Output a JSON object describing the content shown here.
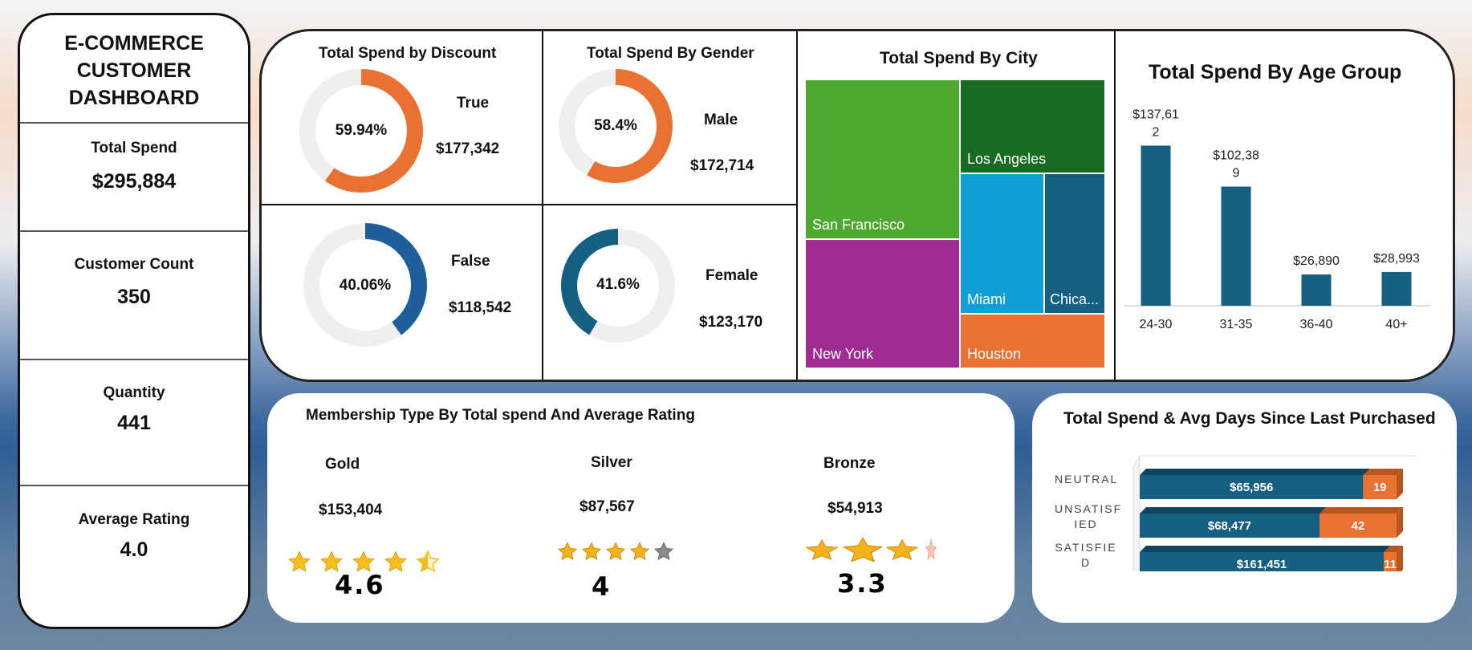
{
  "kpis": {
    "title_lines": [
      "E-COMMERCE",
      "CUSTOMER",
      "DASHBOARD"
    ],
    "items": [
      {
        "label": "Total Spend",
        "value": "$295,884"
      },
      {
        "label": "Customer Count",
        "value": "350"
      },
      {
        "label": "Quantity",
        "value": "441"
      },
      {
        "label": "Average Rating",
        "value": "4.0"
      }
    ]
  },
  "discount": {
    "title": "Total Spend by Discount",
    "true": {
      "label": "True",
      "pct": "59.94%",
      "value": "$177,342",
      "fraction": 0.5994
    },
    "false": {
      "label": "False",
      "pct": "40.06%",
      "value": "$118,542",
      "fraction": 0.4006
    }
  },
  "gender": {
    "title": "Total Spend By Gender",
    "male": {
      "label": "Male",
      "pct": "58.4%",
      "value": "$172,714",
      "fraction": 0.584
    },
    "female": {
      "label": "Female",
      "pct": "41.6%",
      "value": "$123,170",
      "fraction": 0.416
    }
  },
  "city": {
    "title": "Total Spend By City",
    "cells": [
      {
        "label": "San Francisco",
        "color": "#4ea72e"
      },
      {
        "label": "New York",
        "color": "#a02b93"
      },
      {
        "label": "Los Angeles",
        "color": "#196b24"
      },
      {
        "label": "Miami",
        "color": "#0f9ed5"
      },
      {
        "label": "Chica...",
        "color": "#156082"
      },
      {
        "label": "Houston",
        "color": "#e97132"
      }
    ]
  },
  "colors": {
    "orange": "#e97132",
    "blue": "#1f5f99",
    "teal": "#156082",
    "track": "#efefef"
  },
  "chart_data": [
    {
      "type": "bar",
      "title": "Total Spend By Age Group",
      "categories": [
        "24-30",
        "31-35",
        "36-40",
        "40+"
      ],
      "values": [
        137612,
        102389,
        26890,
        28993
      ],
      "data_labels": [
        [
          "$137,61",
          "2"
        ],
        [
          "$102,38",
          "9"
        ],
        [
          "$26,890"
        ],
        [
          "$28,993"
        ]
      ],
      "ylim": [
        0,
        140000
      ]
    },
    {
      "type": "bar",
      "title": "Total Spend & Avg Days Since Last Purchased",
      "orientation": "horizontal-stacked",
      "categories": [
        [
          "NEUTRAL"
        ],
        [
          "UNSATISF",
          "IED"
        ],
        [
          "SATISFIE",
          "D"
        ]
      ],
      "series": [
        {
          "values": [
            65956,
            68477,
            161451
          ],
          "labels": [
            "$65,956",
            "$68,477",
            "$161,451"
          ]
        },
        {
          "values": [
            19,
            42,
            11
          ],
          "labels": [
            "19",
            "42",
            "11"
          ]
        }
      ],
      "bar_fraction_second": [
        0.13,
        0.3,
        0.05
      ]
    }
  ],
  "membership": {
    "title": "Membership Type By Total spend And Average Rating",
    "tiers": [
      {
        "name": "Gold",
        "value": "$153,404",
        "rating": "4.6",
        "stars": 4.6
      },
      {
        "name": "Silver",
        "value": "$87,567",
        "rating": "4",
        "stars": 4
      },
      {
        "name": "Bronze",
        "value": "$54,913",
        "rating": "3.3",
        "stars": 3.3
      }
    ]
  }
}
